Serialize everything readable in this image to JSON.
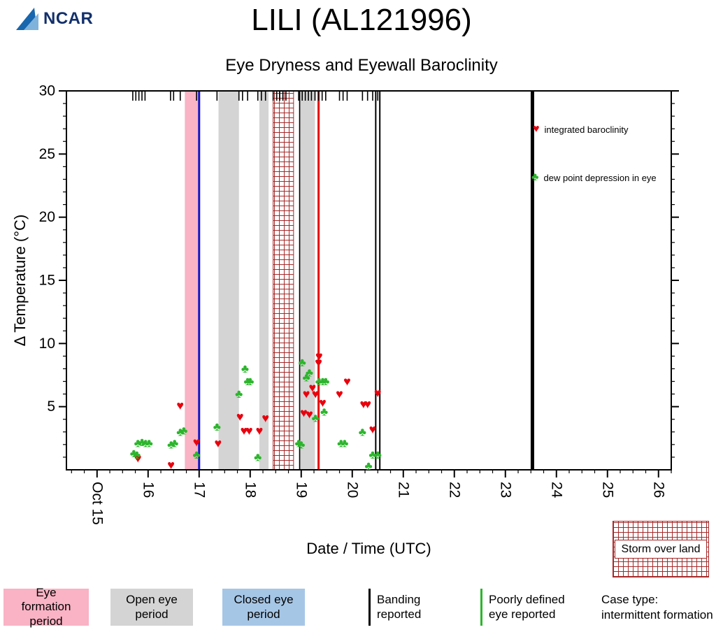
{
  "header": {
    "logo_text": "NCAR",
    "title": "LILI (AL121996)",
    "subtitle": "Eye Dryness and Eyewall Baroclinity"
  },
  "chart_data": {
    "type": "scatter",
    "title": "Eye Dryness and Eyewall Baroclinity",
    "xlabel": "Date / Time (UTC)",
    "ylabel": "Δ Temperature (°C)",
    "xlim": [
      14.4,
      26.25
    ],
    "ylim": [
      0,
      30
    ],
    "x_ticks": [
      {
        "v": 15,
        "label": "Oct 15"
      },
      {
        "v": 16,
        "label": "16"
      },
      {
        "v": 17,
        "label": "17"
      },
      {
        "v": 18,
        "label": "18"
      },
      {
        "v": 19,
        "label": "19"
      },
      {
        "v": 20,
        "label": "20"
      },
      {
        "v": 21,
        "label": "21"
      },
      {
        "v": 22,
        "label": "22"
      },
      {
        "v": 23,
        "label": "23"
      },
      {
        "v": 24,
        "label": "24"
      },
      {
        "v": 25,
        "label": "25"
      },
      {
        "v": 26,
        "label": "26"
      }
    ],
    "y_ticks": [
      5,
      10,
      15,
      20,
      25,
      30
    ],
    "series": [
      {
        "name": "integrated baroclinity",
        "marker": "heart",
        "glyph": "♥",
        "color": "#e8000d",
        "points": [
          [
            15.8,
            0.9
          ],
          [
            16.45,
            0.4
          ],
          [
            16.63,
            5.1
          ],
          [
            16.95,
            2.2
          ],
          [
            17.37,
            2.1
          ],
          [
            17.8,
            4.2
          ],
          [
            17.88,
            3.1
          ],
          [
            17.98,
            3.1
          ],
          [
            18.18,
            3.1
          ],
          [
            18.3,
            4.1
          ],
          [
            19.05,
            4.5
          ],
          [
            19.1,
            6.0
          ],
          [
            19.16,
            4.4
          ],
          [
            19.22,
            6.5
          ],
          [
            19.28,
            6.0
          ],
          [
            19.34,
            8.5
          ],
          [
            19.35,
            9.0
          ],
          [
            19.42,
            5.3
          ],
          [
            19.75,
            6.0
          ],
          [
            19.9,
            7.0
          ],
          [
            20.22,
            5.2
          ],
          [
            20.3,
            5.2
          ],
          [
            20.4,
            3.2
          ],
          [
            20.5,
            6.1
          ]
        ]
      },
      {
        "name": "dew point depression in eye",
        "marker": "club",
        "glyph": "♣",
        "color": "#2cb52c",
        "points": [
          [
            15.72,
            1.3
          ],
          [
            15.78,
            1.2
          ],
          [
            15.8,
            2.1
          ],
          [
            15.88,
            2.2
          ],
          [
            15.95,
            2.1
          ],
          [
            16.02,
            2.1
          ],
          [
            16.45,
            2.0
          ],
          [
            16.52,
            2.1
          ],
          [
            16.63,
            3.0
          ],
          [
            16.7,
            3.1
          ],
          [
            16.95,
            1.2
          ],
          [
            17.35,
            3.4
          ],
          [
            17.78,
            6.0
          ],
          [
            17.9,
            8.0
          ],
          [
            17.95,
            7.0
          ],
          [
            18.0,
            7.0
          ],
          [
            18.15,
            1.0
          ],
          [
            18.95,
            2.1
          ],
          [
            19.0,
            2.0
          ],
          [
            19.02,
            8.5
          ],
          [
            19.1,
            7.3
          ],
          [
            19.16,
            7.7
          ],
          [
            19.28,
            4.1
          ],
          [
            19.35,
            7.0
          ],
          [
            19.42,
            7.0
          ],
          [
            19.48,
            7.0
          ],
          [
            19.45,
            4.6
          ],
          [
            19.78,
            2.1
          ],
          [
            19.85,
            2.1
          ],
          [
            20.2,
            3.0
          ],
          [
            20.32,
            0.3
          ],
          [
            20.4,
            1.2
          ],
          [
            20.5,
            1.2
          ]
        ]
      }
    ],
    "bands": [
      {
        "name": "eye-formation-period",
        "from": 16.72,
        "to": 17.0,
        "color": "#f9b3c4"
      },
      {
        "name": "open-eye-period-1",
        "from": 17.38,
        "to": 17.78,
        "color": "#d4d4d4"
      },
      {
        "name": "open-eye-period-2",
        "from": 18.18,
        "to": 18.36,
        "color": "#d4d4d4"
      },
      {
        "name": "storm-over-land",
        "from": 18.45,
        "to": 18.85,
        "pattern": "crosshatch",
        "color": "#a52a2a"
      },
      {
        "name": "open-eye-period-3",
        "from": 18.95,
        "to": 19.27,
        "color": "#d4d4d4"
      }
    ],
    "vlines": [
      {
        "x": 17.0,
        "color": "#1414c8",
        "width": 3
      },
      {
        "x": 18.97,
        "color": "#000000",
        "width": 1.5
      },
      {
        "x": 19.34,
        "color": "#e8000d",
        "width": 3
      },
      {
        "x": 20.46,
        "color": "#000000",
        "width": 2
      },
      {
        "x": 20.54,
        "color": "#000000",
        "width": 2
      },
      {
        "x": 23.53,
        "color": "#000000",
        "width": 5
      }
    ],
    "obs_ticks": [
      15.7,
      15.76,
      15.82,
      15.88,
      15.94,
      16.44,
      16.5,
      16.63,
      16.95,
      17.35,
      17.78,
      17.85,
      17.95,
      18.15,
      18.22,
      18.3,
      18.45,
      18.52,
      18.58,
      18.64,
      18.7,
      18.95,
      19.02,
      19.08,
      19.14,
      19.2,
      19.27,
      19.34,
      19.41,
      19.48,
      19.75,
      19.82,
      19.9,
      20.2,
      20.3,
      20.4,
      20.5
    ],
    "legend_position": "top-right",
    "grid": false
  },
  "bottom_legend": {
    "eye_formation": "Eye formation period",
    "open_eye": "Open eye period",
    "closed_eye": "Closed eye period",
    "banding": "Banding reported",
    "poorly_defined": "Poorly defined eye reported",
    "case_type_line1": "Case type:",
    "case_type_line2": "intermittent formation",
    "storm_over_land": "Storm over land"
  },
  "colors": {
    "heart": "#e8000d",
    "club": "#2cb52c",
    "pink_band": "#f9b3c4",
    "gray_band": "#d4d4d4",
    "blue_band": "#a6c6e6",
    "crosshatch": "#a52a2a",
    "blue_line": "#1414c8",
    "red_line": "#e8000d",
    "logo_blue_dark": "#1766ae",
    "logo_blue_light": "#7fb3dc"
  }
}
